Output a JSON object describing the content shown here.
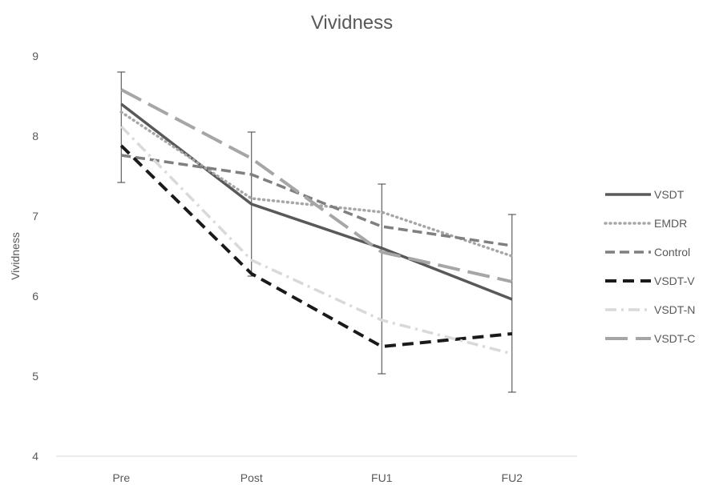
{
  "chart_data": {
    "type": "line",
    "title": "Vividness",
    "xlabel": "",
    "ylabel": "Vividness",
    "categories": [
      "Pre",
      "Post",
      "FU1",
      "FU2"
    ],
    "ylim": [
      4,
      9
    ],
    "yticks": [
      "4",
      "5",
      "6",
      "7",
      "8",
      "9"
    ],
    "grid": false,
    "legend_position": "right",
    "series": [
      {
        "name": "VSDT",
        "values": [
          8.4,
          7.15,
          6.6,
          5.96
        ],
        "color": "#595959",
        "style": "solid",
        "error": [
          [
            7.42,
            8.8
          ],
          [
            6.25,
            8.05
          ],
          [
            5.03,
            7.4
          ],
          [
            4.8,
            7.02
          ]
        ]
      },
      {
        "name": "EMDR",
        "values": [
          8.3,
          7.22,
          7.05,
          6.5
        ],
        "color": "#a6a6a6",
        "style": "dotted",
        "error": null
      },
      {
        "name": "Control",
        "values": [
          7.76,
          7.52,
          6.87,
          6.63
        ],
        "color": "#7f7f7f",
        "style": "dashed",
        "error": null
      },
      {
        "name": "VSDT-V",
        "values": [
          7.88,
          6.28,
          5.37,
          5.53
        ],
        "color": "#1a1a1a",
        "style": "dashed-bold",
        "error": null
      },
      {
        "name": "VSDT-N",
        "values": [
          8.12,
          6.45,
          5.7,
          5.28
        ],
        "color": "#d9d9d9",
        "style": "dash-dot",
        "error": null
      },
      {
        "name": "VSDT-C",
        "values": [
          8.58,
          7.72,
          6.55,
          6.18
        ],
        "color": "#a6a6a6",
        "style": "long-dash",
        "error": null
      }
    ]
  }
}
